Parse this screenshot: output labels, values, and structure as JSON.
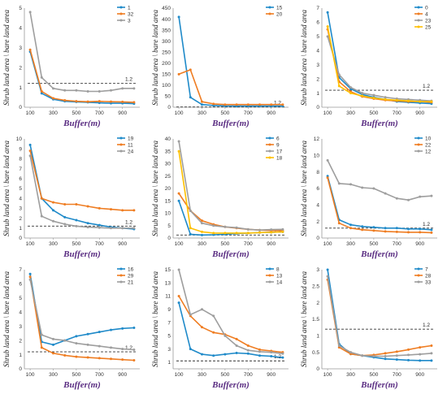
{
  "colors": {
    "blue": "#1f8ac9",
    "orange": "#ef7d22",
    "gray": "#9e9e9e",
    "yellow": "#ffc000"
  },
  "x_label": "Buffer(m)",
  "y_label": "Shrub land area \\ bare land area",
  "ref_label": "1.2",
  "chart_data": [
    {
      "type": "line",
      "ylim": [
        0,
        5
      ],
      "yticks": [
        0,
        1,
        2,
        3,
        4,
        5
      ],
      "ref": 1.2,
      "x": [
        100,
        200,
        300,
        400,
        500,
        600,
        700,
        800,
        900,
        1000
      ],
      "xticks": [
        100,
        300,
        500,
        700,
        900
      ],
      "series": [
        {
          "name": "1",
          "color": "blue",
          "values": [
            2.8,
            0.7,
            0.4,
            0.3,
            0.27,
            0.25,
            0.22,
            0.2,
            0.2,
            0.18
          ]
        },
        {
          "name": "32",
          "color": "orange",
          "values": [
            2.9,
            0.8,
            0.45,
            0.35,
            0.3,
            0.28,
            0.3,
            0.28,
            0.27,
            0.25
          ]
        },
        {
          "name": "3",
          "color": "gray",
          "values": [
            4.8,
            1.5,
            0.95,
            0.85,
            0.85,
            0.8,
            0.8,
            0.85,
            0.95,
            0.95
          ]
        }
      ]
    },
    {
      "type": "line",
      "ylim": [
        0,
        450
      ],
      "yticks": [
        0,
        50,
        100,
        150,
        200,
        250,
        300,
        350,
        400,
        450
      ],
      "ref": 1.2,
      "x": [
        100,
        200,
        300,
        400,
        500,
        600,
        700,
        800,
        900,
        1000
      ],
      "xticks": [
        100,
        300,
        500,
        700,
        900
      ],
      "series": [
        {
          "name": "15",
          "color": "blue",
          "values": [
            410,
            45,
            12,
            8,
            6,
            5,
            5,
            5,
            5,
            5
          ]
        },
        {
          "name": "20",
          "color": "orange",
          "values": [
            150,
            170,
            25,
            15,
            12,
            12,
            12,
            12,
            12,
            12
          ]
        }
      ]
    },
    {
      "type": "line",
      "ylim": [
        0,
        7
      ],
      "yticks": [
        0,
        1,
        2,
        3,
        4,
        5,
        6,
        7
      ],
      "ref": 1.2,
      "x": [
        100,
        200,
        300,
        400,
        500,
        600,
        700,
        800,
        900,
        1000
      ],
      "xticks": [
        100,
        300,
        500,
        700,
        900
      ],
      "series": [
        {
          "name": "0",
          "color": "blue",
          "values": [
            6.7,
            2.1,
            1.3,
            0.9,
            0.7,
            0.55,
            0.4,
            0.35,
            0.3,
            0.25
          ]
        },
        {
          "name": "4",
          "color": "orange",
          "values": [
            5.5,
            1.8,
            1.1,
            0.75,
            0.6,
            0.5,
            0.45,
            0.4,
            0.4,
            0.35
          ]
        },
        {
          "name": "23",
          "color": "gray",
          "values": [
            5.0,
            2.3,
            1.4,
            1.0,
            0.85,
            0.7,
            0.6,
            0.55,
            0.5,
            0.45
          ]
        },
        {
          "name": "25",
          "color": "yellow",
          "values": [
            5.7,
            1.5,
            1.0,
            0.8,
            0.65,
            0.55,
            0.5,
            0.45,
            0.4,
            0.4
          ]
        }
      ]
    },
    {
      "type": "line",
      "ylim": [
        0,
        10
      ],
      "yticks": [
        0,
        1,
        2,
        3,
        4,
        5,
        6,
        7,
        8,
        9,
        10
      ],
      "ref": 1.2,
      "x": [
        100,
        200,
        300,
        400,
        500,
        600,
        700,
        800,
        900,
        1000
      ],
      "xticks": [
        100,
        300,
        500,
        700,
        900
      ],
      "series": [
        {
          "name": "19",
          "color": "blue",
          "values": [
            9.4,
            4.0,
            2.8,
            2.1,
            1.8,
            1.5,
            1.3,
            1.1,
            1.0,
            0.9
          ]
        },
        {
          "name": "11",
          "color": "orange",
          "values": [
            8.8,
            4.0,
            3.6,
            3.4,
            3.4,
            3.2,
            3.0,
            2.9,
            2.8,
            2.8
          ]
        },
        {
          "name": "24",
          "color": "gray",
          "values": [
            8.3,
            2.2,
            1.7,
            1.4,
            1.2,
            1.1,
            1.05,
            1.0,
            1.0,
            1.0
          ]
        }
      ]
    },
    {
      "type": "line",
      "ylim": [
        0,
        40
      ],
      "yticks": [
        0,
        5,
        10,
        15,
        20,
        25,
        30,
        35,
        40
      ],
      "ref": 1.2,
      "x": [
        100,
        200,
        300,
        400,
        500,
        600,
        700,
        800,
        900,
        1000
      ],
      "xticks": [
        100,
        300,
        500,
        700,
        900
      ],
      "series": [
        {
          "name": "6",
          "color": "blue",
          "values": [
            15,
            1.5,
            1.2,
            1.3,
            1.5,
            1.8,
            2.0,
            2.2,
            2.3,
            2.5
          ]
        },
        {
          "name": "9",
          "color": "orange",
          "values": [
            18,
            11,
            7,
            5.5,
            4.5,
            4,
            3.5,
            3.2,
            3,
            3
          ]
        },
        {
          "name": "17",
          "color": "gray",
          "values": [
            39,
            11,
            6,
            5,
            4.5,
            4.2,
            3.5,
            3.2,
            3.4,
            3.5
          ]
        },
        {
          "name": "18",
          "color": "yellow",
          "values": [
            35,
            4,
            2.5,
            2,
            2,
            2,
            2,
            2.2,
            2.3,
            2.5
          ]
        }
      ]
    },
    {
      "type": "line",
      "ylim": [
        0,
        12
      ],
      "yticks": [
        0,
        2,
        4,
        6,
        8,
        10,
        12
      ],
      "ref": 1.2,
      "x": [
        100,
        200,
        300,
        400,
        500,
        600,
        700,
        800,
        900,
        1000
      ],
      "xticks": [
        100,
        300,
        500,
        700,
        900
      ],
      "series": [
        {
          "name": "10",
          "color": "blue",
          "values": [
            7.5,
            2.2,
            1.6,
            1.4,
            1.3,
            1.2,
            1.2,
            1.1,
            1.1,
            1.0
          ]
        },
        {
          "name": "22",
          "color": "orange",
          "values": [
            7.3,
            1.8,
            1.2,
            1.0,
            0.9,
            0.8,
            0.75,
            0.7,
            0.7,
            0.65
          ]
        },
        {
          "name": "12",
          "color": "gray",
          "values": [
            9.4,
            6.6,
            6.5,
            6.1,
            6.0,
            5.4,
            4.8,
            4.6,
            5.0,
            5.1
          ]
        }
      ]
    },
    {
      "type": "line",
      "ylim": [
        0,
        7
      ],
      "yticks": [
        0,
        1,
        2,
        3,
        4,
        5,
        6,
        7
      ],
      "ref": 1.2,
      "x": [
        100,
        200,
        300,
        400,
        500,
        600,
        700,
        800,
        900,
        1000
      ],
      "xticks": [
        100,
        300,
        500,
        700,
        900
      ],
      "series": [
        {
          "name": "16",
          "color": "blue",
          "values": [
            6.7,
            1.9,
            1.7,
            2.0,
            2.3,
            2.45,
            2.6,
            2.75,
            2.85,
            2.9
          ]
        },
        {
          "name": "29",
          "color": "orange",
          "values": [
            6.5,
            1.5,
            1.1,
            0.95,
            0.85,
            0.8,
            0.75,
            0.7,
            0.65,
            0.6
          ]
        },
        {
          "name": "21",
          "color": "gray",
          "values": [
            6.3,
            2.4,
            2.1,
            2.0,
            1.8,
            1.7,
            1.6,
            1.5,
            1.4,
            1.35
          ]
        }
      ]
    },
    {
      "type": "line",
      "ylim": [
        0,
        15
      ],
      "yticks": [
        1,
        3,
        5,
        7,
        9,
        11,
        13,
        15
      ],
      "ref": 1.2,
      "x": [
        100,
        200,
        300,
        400,
        500,
        600,
        700,
        800,
        900,
        1000
      ],
      "xticks": [
        100,
        300,
        500,
        700,
        900
      ],
      "series": [
        {
          "name": "8",
          "color": "blue",
          "values": [
            10,
            3.0,
            2.2,
            2.0,
            2.2,
            2.4,
            2.3,
            2.0,
            1.9,
            1.7
          ]
        },
        {
          "name": "13",
          "color": "orange",
          "values": [
            11,
            8,
            6.3,
            5.5,
            5.2,
            4.5,
            3.5,
            2.9,
            2.7,
            2.5
          ]
        },
        {
          "name": "14",
          "color": "gray",
          "values": [
            15,
            8.2,
            9.0,
            8.0,
            5.0,
            3.5,
            2.8,
            2.6,
            2.5,
            2.3
          ]
        }
      ]
    },
    {
      "type": "line",
      "ylim": [
        0,
        3
      ],
      "yticks": [
        0,
        0.5,
        1,
        1.5,
        2,
        2.5,
        3
      ],
      "ref": 1.2,
      "x": [
        100,
        200,
        300,
        400,
        500,
        600,
        700,
        800,
        900,
        1000
      ],
      "xticks": [
        100,
        300,
        500,
        700,
        900
      ],
      "series": [
        {
          "name": "7",
          "color": "blue",
          "values": [
            3.0,
            0.75,
            0.45,
            0.4,
            0.35,
            0.3,
            0.28,
            0.26,
            0.25,
            0.25
          ]
        },
        {
          "name": "28",
          "color": "orange",
          "values": [
            2.7,
            0.65,
            0.45,
            0.4,
            0.42,
            0.47,
            0.52,
            0.58,
            0.65,
            0.7
          ]
        },
        {
          "name": "33",
          "color": "gray",
          "values": [
            2.8,
            0.7,
            0.5,
            0.4,
            0.38,
            0.38,
            0.4,
            0.42,
            0.44,
            0.47
          ]
        }
      ]
    }
  ]
}
